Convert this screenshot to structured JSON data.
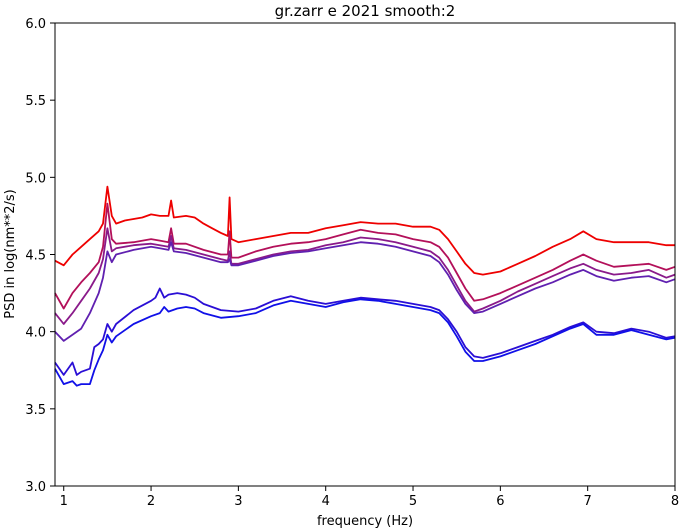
{
  "chart_data": {
    "type": "line",
    "title": "gr.zarr e 2021 smooth:2",
    "xlabel": "frequency (Hz)",
    "ylabel": "PSD in log(nm**2/s)",
    "xlim": [
      0.9,
      8.0
    ],
    "ylim": [
      3.0,
      6.0
    ],
    "xticks": [
      "1",
      "2",
      "3",
      "4",
      "5",
      "6",
      "7",
      "8"
    ],
    "yticks": [
      "3.0",
      "3.5",
      "4.0",
      "4.5",
      "5.0",
      "5.5",
      "6.0"
    ],
    "grid": false,
    "legend": "none",
    "series": [
      {
        "color": "#ee0000",
        "points": [
          [
            0.9,
            4.46
          ],
          [
            1.0,
            4.43
          ],
          [
            1.1,
            4.5
          ],
          [
            1.2,
            4.55
          ],
          [
            1.3,
            4.6
          ],
          [
            1.4,
            4.65
          ],
          [
            1.45,
            4.7
          ],
          [
            1.5,
            4.94
          ],
          [
            1.55,
            4.75
          ],
          [
            1.6,
            4.7
          ],
          [
            1.7,
            4.72
          ],
          [
            1.8,
            4.73
          ],
          [
            1.9,
            4.74
          ],
          [
            2.0,
            4.76
          ],
          [
            2.1,
            4.75
          ],
          [
            2.2,
            4.75
          ],
          [
            2.23,
            4.85
          ],
          [
            2.26,
            4.74
          ],
          [
            2.4,
            4.75
          ],
          [
            2.5,
            4.74
          ],
          [
            2.6,
            4.7
          ],
          [
            2.7,
            4.67
          ],
          [
            2.8,
            4.64
          ],
          [
            2.88,
            4.62
          ],
          [
            2.9,
            4.87
          ],
          [
            2.92,
            4.6
          ],
          [
            3.0,
            4.58
          ],
          [
            3.2,
            4.6
          ],
          [
            3.4,
            4.62
          ],
          [
            3.6,
            4.64
          ],
          [
            3.8,
            4.64
          ],
          [
            4.0,
            4.67
          ],
          [
            4.2,
            4.69
          ],
          [
            4.4,
            4.71
          ],
          [
            4.6,
            4.7
          ],
          [
            4.8,
            4.7
          ],
          [
            5.0,
            4.68
          ],
          [
            5.2,
            4.68
          ],
          [
            5.3,
            4.66
          ],
          [
            5.4,
            4.6
          ],
          [
            5.5,
            4.52
          ],
          [
            5.6,
            4.44
          ],
          [
            5.7,
            4.38
          ],
          [
            5.8,
            4.37
          ],
          [
            6.0,
            4.39
          ],
          [
            6.2,
            4.44
          ],
          [
            6.4,
            4.49
          ],
          [
            6.6,
            4.55
          ],
          [
            6.8,
            4.6
          ],
          [
            6.95,
            4.65
          ],
          [
            7.1,
            4.6
          ],
          [
            7.3,
            4.58
          ],
          [
            7.5,
            4.58
          ],
          [
            7.7,
            4.58
          ],
          [
            7.9,
            4.56
          ],
          [
            8.0,
            4.56
          ]
        ]
      },
      {
        "color": "#b3105a",
        "points": [
          [
            0.9,
            4.25
          ],
          [
            1.0,
            4.15
          ],
          [
            1.1,
            4.25
          ],
          [
            1.2,
            4.32
          ],
          [
            1.3,
            4.38
          ],
          [
            1.4,
            4.45
          ],
          [
            1.45,
            4.55
          ],
          [
            1.5,
            4.83
          ],
          [
            1.55,
            4.6
          ],
          [
            1.6,
            4.57
          ],
          [
            1.8,
            4.58
          ],
          [
            2.0,
            4.6
          ],
          [
            2.1,
            4.59
          ],
          [
            2.2,
            4.58
          ],
          [
            2.23,
            4.67
          ],
          [
            2.26,
            4.57
          ],
          [
            2.4,
            4.57
          ],
          [
            2.6,
            4.53
          ],
          [
            2.8,
            4.5
          ],
          [
            2.88,
            4.5
          ],
          [
            2.9,
            4.65
          ],
          [
            2.92,
            4.48
          ],
          [
            3.0,
            4.48
          ],
          [
            3.2,
            4.52
          ],
          [
            3.4,
            4.55
          ],
          [
            3.6,
            4.57
          ],
          [
            3.8,
            4.58
          ],
          [
            4.0,
            4.6
          ],
          [
            4.2,
            4.63
          ],
          [
            4.4,
            4.66
          ],
          [
            4.6,
            4.64
          ],
          [
            4.8,
            4.63
          ],
          [
            5.0,
            4.6
          ],
          [
            5.2,
            4.58
          ],
          [
            5.3,
            4.55
          ],
          [
            5.4,
            4.48
          ],
          [
            5.5,
            4.38
          ],
          [
            5.6,
            4.28
          ],
          [
            5.7,
            4.2
          ],
          [
            5.8,
            4.21
          ],
          [
            6.0,
            4.25
          ],
          [
            6.2,
            4.3
          ],
          [
            6.4,
            4.35
          ],
          [
            6.6,
            4.4
          ],
          [
            6.8,
            4.46
          ],
          [
            6.95,
            4.5
          ],
          [
            7.1,
            4.46
          ],
          [
            7.3,
            4.42
          ],
          [
            7.5,
            4.43
          ],
          [
            7.7,
            4.44
          ],
          [
            7.9,
            4.4
          ],
          [
            8.0,
            4.42
          ]
        ]
      },
      {
        "color": "#8a1a8a",
        "points": [
          [
            0.9,
            4.12
          ],
          [
            1.0,
            4.05
          ],
          [
            1.1,
            4.12
          ],
          [
            1.2,
            4.2
          ],
          [
            1.3,
            4.28
          ],
          [
            1.4,
            4.38
          ],
          [
            1.45,
            4.47
          ],
          [
            1.5,
            4.67
          ],
          [
            1.55,
            4.52
          ],
          [
            1.6,
            4.54
          ],
          [
            1.8,
            4.56
          ],
          [
            2.0,
            4.57
          ],
          [
            2.1,
            4.56
          ],
          [
            2.2,
            4.55
          ],
          [
            2.23,
            4.62
          ],
          [
            2.26,
            4.54
          ],
          [
            2.4,
            4.53
          ],
          [
            2.6,
            4.5
          ],
          [
            2.8,
            4.47
          ],
          [
            2.88,
            4.46
          ],
          [
            2.9,
            4.52
          ],
          [
            2.92,
            4.44
          ],
          [
            3.0,
            4.44
          ],
          [
            3.2,
            4.47
          ],
          [
            3.4,
            4.5
          ],
          [
            3.6,
            4.52
          ],
          [
            3.8,
            4.53
          ],
          [
            4.0,
            4.56
          ],
          [
            4.2,
            4.58
          ],
          [
            4.4,
            4.61
          ],
          [
            4.6,
            4.6
          ],
          [
            4.8,
            4.58
          ],
          [
            5.0,
            4.55
          ],
          [
            5.2,
            4.52
          ],
          [
            5.3,
            4.48
          ],
          [
            5.4,
            4.4
          ],
          [
            5.5,
            4.3
          ],
          [
            5.6,
            4.2
          ],
          [
            5.7,
            4.13
          ],
          [
            5.8,
            4.15
          ],
          [
            6.0,
            4.2
          ],
          [
            6.2,
            4.26
          ],
          [
            6.4,
            4.31
          ],
          [
            6.6,
            4.36
          ],
          [
            6.8,
            4.41
          ],
          [
            6.95,
            4.44
          ],
          [
            7.1,
            4.4
          ],
          [
            7.3,
            4.37
          ],
          [
            7.5,
            4.38
          ],
          [
            7.7,
            4.4
          ],
          [
            7.9,
            4.35
          ],
          [
            8.0,
            4.37
          ]
        ]
      },
      {
        "color": "#6020b0",
        "points": [
          [
            0.9,
            4.0
          ],
          [
            1.0,
            3.94
          ],
          [
            1.1,
            3.98
          ],
          [
            1.2,
            4.02
          ],
          [
            1.3,
            4.12
          ],
          [
            1.4,
            4.25
          ],
          [
            1.45,
            4.35
          ],
          [
            1.5,
            4.52
          ],
          [
            1.55,
            4.45
          ],
          [
            1.6,
            4.5
          ],
          [
            1.8,
            4.53
          ],
          [
            2.0,
            4.55
          ],
          [
            2.1,
            4.54
          ],
          [
            2.2,
            4.53
          ],
          [
            2.23,
            4.58
          ],
          [
            2.26,
            4.52
          ],
          [
            2.4,
            4.51
          ],
          [
            2.6,
            4.48
          ],
          [
            2.8,
            4.45
          ],
          [
            2.88,
            4.45
          ],
          [
            2.9,
            4.47
          ],
          [
            2.92,
            4.43
          ],
          [
            3.0,
            4.43
          ],
          [
            3.2,
            4.46
          ],
          [
            3.4,
            4.49
          ],
          [
            3.6,
            4.51
          ],
          [
            3.8,
            4.52
          ],
          [
            4.0,
            4.54
          ],
          [
            4.2,
            4.56
          ],
          [
            4.4,
            4.58
          ],
          [
            4.6,
            4.57
          ],
          [
            4.8,
            4.55
          ],
          [
            5.0,
            4.52
          ],
          [
            5.2,
            4.49
          ],
          [
            5.3,
            4.45
          ],
          [
            5.4,
            4.37
          ],
          [
            5.5,
            4.27
          ],
          [
            5.6,
            4.18
          ],
          [
            5.7,
            4.12
          ],
          [
            5.8,
            4.13
          ],
          [
            6.0,
            4.18
          ],
          [
            6.2,
            4.23
          ],
          [
            6.4,
            4.28
          ],
          [
            6.6,
            4.32
          ],
          [
            6.8,
            4.37
          ],
          [
            6.95,
            4.4
          ],
          [
            7.1,
            4.36
          ],
          [
            7.3,
            4.33
          ],
          [
            7.5,
            4.35
          ],
          [
            7.7,
            4.36
          ],
          [
            7.9,
            4.32
          ],
          [
            8.0,
            4.34
          ]
        ]
      },
      {
        "color": "#2a0ed5",
        "points": [
          [
            0.9,
            3.8
          ],
          [
            1.0,
            3.72
          ],
          [
            1.1,
            3.8
          ],
          [
            1.15,
            3.72
          ],
          [
            1.2,
            3.74
          ],
          [
            1.3,
            3.76
          ],
          [
            1.35,
            3.9
          ],
          [
            1.4,
            3.92
          ],
          [
            1.45,
            3.95
          ],
          [
            1.5,
            4.05
          ],
          [
            1.55,
            4.0
          ],
          [
            1.6,
            4.05
          ],
          [
            1.8,
            4.14
          ],
          [
            2.0,
            4.2
          ],
          [
            2.05,
            4.22
          ],
          [
            2.1,
            4.28
          ],
          [
            2.15,
            4.22
          ],
          [
            2.2,
            4.24
          ],
          [
            2.3,
            4.25
          ],
          [
            2.4,
            4.24
          ],
          [
            2.5,
            4.22
          ],
          [
            2.6,
            4.18
          ],
          [
            2.8,
            4.14
          ],
          [
            3.0,
            4.13
          ],
          [
            3.2,
            4.15
          ],
          [
            3.4,
            4.2
          ],
          [
            3.6,
            4.23
          ],
          [
            3.8,
            4.2
          ],
          [
            4.0,
            4.18
          ],
          [
            4.2,
            4.2
          ],
          [
            4.4,
            4.22
          ],
          [
            4.6,
            4.21
          ],
          [
            4.8,
            4.2
          ],
          [
            5.0,
            4.18
          ],
          [
            5.2,
            4.16
          ],
          [
            5.3,
            4.14
          ],
          [
            5.4,
            4.08
          ],
          [
            5.5,
            4.0
          ],
          [
            5.6,
            3.9
          ],
          [
            5.7,
            3.84
          ],
          [
            5.8,
            3.83
          ],
          [
            6.0,
            3.86
          ],
          [
            6.2,
            3.9
          ],
          [
            6.4,
            3.94
          ],
          [
            6.6,
            3.98
          ],
          [
            6.8,
            4.03
          ],
          [
            6.95,
            4.06
          ],
          [
            7.1,
            4.0
          ],
          [
            7.3,
            3.99
          ],
          [
            7.5,
            4.02
          ],
          [
            7.7,
            4.0
          ],
          [
            7.9,
            3.96
          ],
          [
            8.0,
            3.97
          ]
        ]
      },
      {
        "color": "#1010e8",
        "points": [
          [
            0.9,
            3.76
          ],
          [
            1.0,
            3.66
          ],
          [
            1.1,
            3.68
          ],
          [
            1.15,
            3.65
          ],
          [
            1.2,
            3.66
          ],
          [
            1.3,
            3.66
          ],
          [
            1.35,
            3.75
          ],
          [
            1.4,
            3.82
          ],
          [
            1.45,
            3.88
          ],
          [
            1.5,
            3.98
          ],
          [
            1.55,
            3.93
          ],
          [
            1.6,
            3.97
          ],
          [
            1.8,
            4.05
          ],
          [
            2.0,
            4.1
          ],
          [
            2.1,
            4.12
          ],
          [
            2.15,
            4.16
          ],
          [
            2.2,
            4.13
          ],
          [
            2.3,
            4.15
          ],
          [
            2.4,
            4.16
          ],
          [
            2.5,
            4.15
          ],
          [
            2.6,
            4.12
          ],
          [
            2.8,
            4.09
          ],
          [
            3.0,
            4.1
          ],
          [
            3.2,
            4.12
          ],
          [
            3.4,
            4.17
          ],
          [
            3.6,
            4.2
          ],
          [
            3.8,
            4.18
          ],
          [
            4.0,
            4.16
          ],
          [
            4.2,
            4.19
          ],
          [
            4.4,
            4.21
          ],
          [
            4.6,
            4.2
          ],
          [
            4.8,
            4.18
          ],
          [
            5.0,
            4.16
          ],
          [
            5.2,
            4.14
          ],
          [
            5.3,
            4.12
          ],
          [
            5.4,
            4.06
          ],
          [
            5.5,
            3.97
          ],
          [
            5.6,
            3.87
          ],
          [
            5.7,
            3.81
          ],
          [
            5.8,
            3.81
          ],
          [
            6.0,
            3.84
          ],
          [
            6.2,
            3.88
          ],
          [
            6.4,
            3.92
          ],
          [
            6.6,
            3.97
          ],
          [
            6.8,
            4.02
          ],
          [
            6.95,
            4.05
          ],
          [
            7.1,
            3.98
          ],
          [
            7.3,
            3.98
          ],
          [
            7.5,
            4.01
          ],
          [
            7.7,
            3.98
          ],
          [
            7.9,
            3.95
          ],
          [
            8.0,
            3.96
          ]
        ]
      }
    ]
  }
}
